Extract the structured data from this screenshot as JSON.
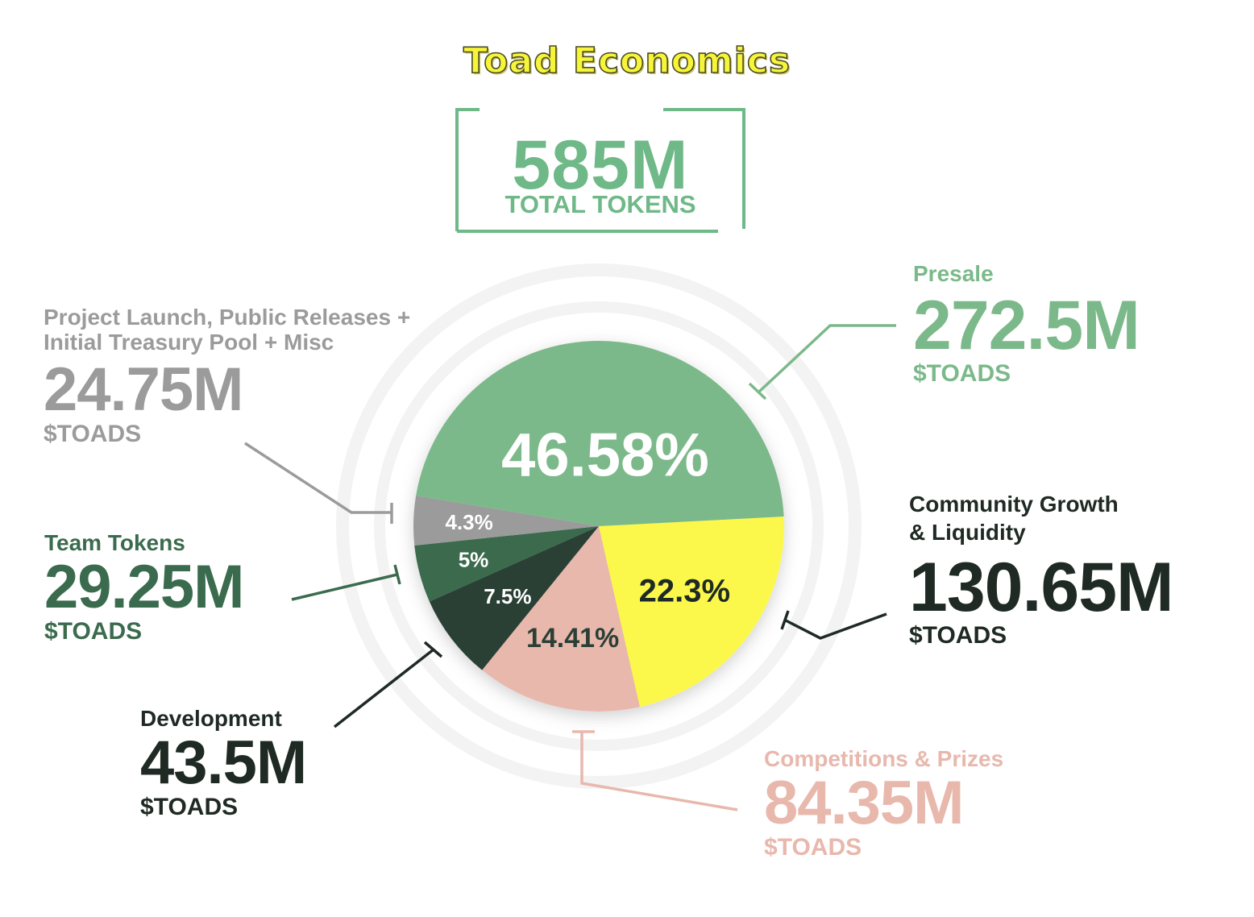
{
  "title": "Toad Economics",
  "total": {
    "value": "585M",
    "label": "TOTAL TOKENS"
  },
  "colors": {
    "presale": "#7cb98a",
    "community": "#fbf84b",
    "competitions": "#e8b8ad",
    "development": "#2b3f35",
    "team": "#3b6b4e",
    "launch": "#9a9b9a",
    "title": "#f7f53a",
    "accent": "#6fb887"
  },
  "chart_data": {
    "type": "pie",
    "unit": "$TOADS",
    "slices": [
      {
        "key": "presale",
        "name": "Presale",
        "percent": 46.58,
        "percent_label": "46.58%",
        "amount": "272.5M",
        "unit": "$TOADS"
      },
      {
        "key": "community",
        "name": "Community Growth & Liquidity",
        "name_lines": [
          "Community Growth",
          "& Liquidity"
        ],
        "percent": 22.3,
        "percent_label": "22.3%",
        "amount": "130.65M",
        "unit": "$TOADS"
      },
      {
        "key": "competitions",
        "name": "Competitions & Prizes",
        "percent": 14.41,
        "percent_label": "14.41%",
        "amount": "84.35M",
        "unit": "$TOADS"
      },
      {
        "key": "development",
        "name": "Development",
        "percent": 7.5,
        "percent_label": "7.5%",
        "amount": "43.5M",
        "unit": "$TOADS"
      },
      {
        "key": "team",
        "name": "Team Tokens",
        "percent": 5,
        "percent_label": "5%",
        "amount": "29.25M",
        "unit": "$TOADS"
      },
      {
        "key": "launch",
        "name": "Project Launch, Public Releases + Initial Treasury Pool + Misc",
        "name_lines": [
          "Project Launch, Public Releases +",
          "Initial Treasury Pool + Misc"
        ],
        "percent": 4.3,
        "percent_label": "4.3%",
        "amount": "24.75M",
        "unit": "$TOADS"
      }
    ]
  }
}
